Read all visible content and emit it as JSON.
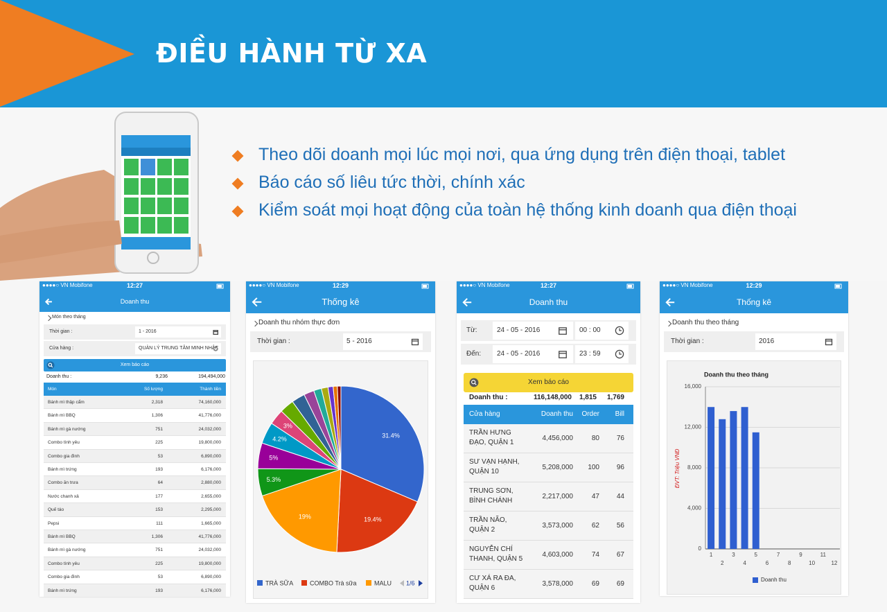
{
  "header": {
    "title": "ĐIỀU HÀNH TỪ XA"
  },
  "bullets": [
    "Theo dõi doanh mọi lúc mọi nơi, qua ứng dụng trên điện thoại, tablet",
    "Báo cáo số liêu tức thời, chính xác",
    "Kiểm soát mọi hoạt động của toàn hệ thống kinh doanh qua điện thoại"
  ],
  "screens": [
    {
      "carrier": "●●●●○ VN Mobifone",
      "time": "12:27",
      "title": "Doanh thu",
      "section": "Món theo tháng",
      "fields": [
        {
          "label": "Thời gian :",
          "value": "1 - 2016"
        },
        {
          "label": "Cửa hàng :",
          "value": "QUẢN LÝ TRUNG TÂM MINH NHẬT"
        }
      ],
      "button": "Xem báo cáo",
      "summary": {
        "label": "Doanh thu :",
        "values": [
          "9,236",
          "194,494,000"
        ]
      },
      "table": {
        "header": [
          "Món",
          "Số lượng",
          "Thành tiền"
        ],
        "rows": [
          [
            "Bánh mì thập cẩm",
            "2,318",
            "74,160,000"
          ],
          [
            "Bánh mì BBQ",
            "1,306",
            "41,776,000"
          ],
          [
            "Bánh mì gà nướng",
            "751",
            "24,032,000"
          ],
          [
            "Combo tình yêu",
            "225",
            "19,800,000"
          ],
          [
            "Combo gia đình",
            "53",
            "6,890,000"
          ],
          [
            "Bánh mì trứng",
            "193",
            "6,176,000"
          ],
          [
            "Combo ăn trưa",
            "64",
            "2,880,000"
          ],
          [
            "Nước chanh xả",
            "177",
            "2,655,000"
          ],
          [
            "Quế táo",
            "153",
            "2,295,000"
          ],
          [
            "Pepsi",
            "111",
            "1,665,000"
          ],
          [
            "Bánh mì BBQ",
            "1,306",
            "41,776,000"
          ],
          [
            "Bánh mì gà nướng",
            "751",
            "24,032,000"
          ],
          [
            "Combo tình yêu",
            "225",
            "19,800,000"
          ],
          [
            "Combo gia đình",
            "53",
            "6,890,000"
          ],
          [
            "Bánh mì trứng",
            "193",
            "6,176,000"
          ]
        ]
      }
    },
    {
      "carrier": "●●●●○ VN Mobifone",
      "time": "12:29",
      "title": "Thống kê",
      "section": "Doanh thu nhóm thực đơn",
      "fields": [
        {
          "label": "Thời gian :",
          "value": "5 - 2016"
        }
      ],
      "page": "1/6"
    },
    {
      "carrier": "●●●●○ VN Mobifone",
      "time": "12:27",
      "title": "Doanh thu",
      "fields": [
        {
          "label": "Từ:",
          "date": "24 - 05 - 2016",
          "time": "00 : 00"
        },
        {
          "label": "Đến:",
          "date": "24 - 05 - 2016",
          "time": "23 : 59"
        }
      ],
      "button": "Xem báo cáo",
      "summary": {
        "label": "Doanh thu :",
        "values": [
          "116,148,000",
          "1,815",
          "1,769"
        ]
      },
      "table": {
        "header": [
          "Cửa hàng",
          "Doanh thu",
          "Order",
          "Bill"
        ],
        "rows": [
          [
            "TRẦN HƯNG ĐẠO, QUẬN 1",
            "4,456,000",
            "80",
            "76"
          ],
          [
            "SƯ VẠN HẠNH, QUẬN 10",
            "5,208,000",
            "100",
            "96"
          ],
          [
            "TRUNG SƠN, BÌNH CHÁNH",
            "2,217,000",
            "47",
            "44"
          ],
          [
            "TRẦN NÃO, QUẬN 2",
            "3,573,000",
            "62",
            "56"
          ],
          [
            "NGUYỄN CHÍ THANH, QUẬN 5",
            "4,603,000",
            "74",
            "67"
          ],
          [
            "CƯ XÁ RA ĐA, QUẬN 6",
            "3,578,000",
            "69",
            "69"
          ]
        ]
      }
    },
    {
      "carrier": "●●●●○ VN Mobifone",
      "time": "12:29",
      "title": "Thống kê",
      "section": "Doanh thu theo tháng",
      "fields": [
        {
          "label": "Thời gian :",
          "value": "2016"
        }
      ]
    }
  ],
  "chart_data": [
    {
      "type": "pie",
      "categories": [
        "TRÀ SỮA",
        "COMBO Trà sữa",
        "MALU",
        null,
        null,
        null,
        null,
        null,
        null,
        null,
        null,
        null,
        null,
        null,
        null
      ],
      "values": [
        31.4,
        19.4,
        19,
        5.3,
        5,
        4.2,
        3,
        2.8,
        2.6,
        2.0,
        1.5,
        1.3,
        1.0,
        0.8,
        0.7
      ],
      "value_labels": [
        "31.4%",
        "19.4%",
        "19%",
        "5.3%",
        "5%",
        "4.2%",
        "3%",
        null,
        null,
        null,
        null,
        null,
        null,
        null,
        null
      ],
      "colors": [
        "#3366cc",
        "#dc3912",
        "#ff9900",
        "#109618",
        "#990099",
        "#0099c6",
        "#dd4477",
        "#66aa00",
        "#316395",
        "#994499",
        "#22aa99",
        "#aaaa11",
        "#6633cc",
        "#e67300",
        "#8b0707"
      ]
    },
    {
      "type": "bar",
      "title": "Doanh thu theo tháng",
      "y_label": "ĐVT: Triệu VNĐ",
      "categories": [
        "1",
        "2",
        "3",
        "4",
        "5",
        "6",
        "7",
        "8",
        "9",
        "10",
        "11",
        "12"
      ],
      "series": [
        {
          "name": "Doanh thu",
          "color": "#2f5fd0",
          "values": [
            14000,
            12800,
            13600,
            14000,
            11500,
            null,
            null,
            null,
            null,
            null,
            null,
            null
          ]
        }
      ],
      "ylim": [
        0,
        16000
      ],
      "yticks": [
        0,
        {
          "value": 4000,
          "label": "4,000"
        },
        {
          "value": 8000,
          "label": "8,000"
        },
        {
          "value": 12000,
          "label": "12,000"
        },
        {
          "value": 16000,
          "label": "16,000"
        }
      ],
      "grid": true
    }
  ]
}
